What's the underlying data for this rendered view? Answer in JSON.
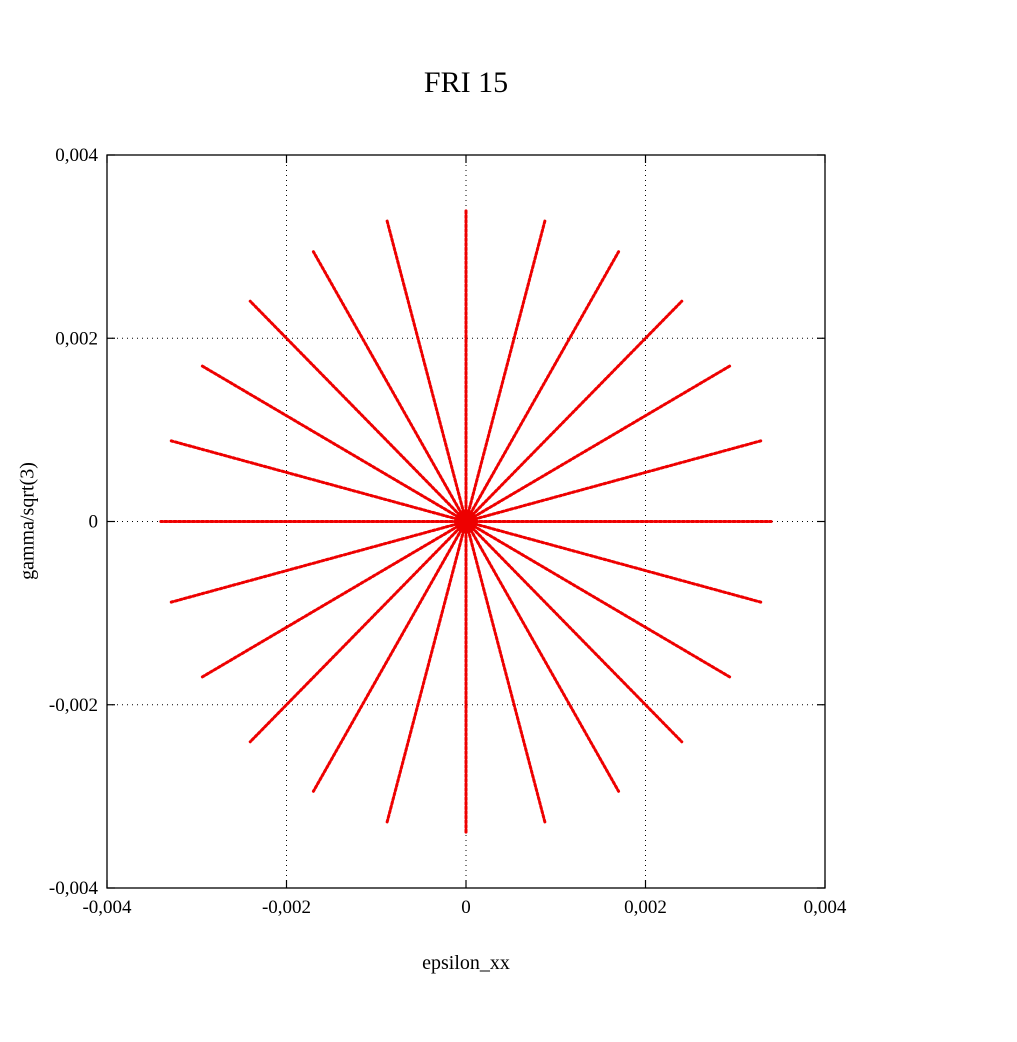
{
  "chart_data": {
    "type": "scatter",
    "title": "FRI 15",
    "xlabel": "epsilon_xx",
    "ylabel": "gamma/sqrt(3)",
    "xlim": [
      -0.004,
      0.004
    ],
    "ylim": [
      -0.004,
      0.004
    ],
    "x_ticks": [
      "-0,004",
      "-0,002",
      "0",
      "0,002",
      "0,004"
    ],
    "x_tick_values": [
      -0.004,
      -0.002,
      0,
      0.002,
      0.004
    ],
    "y_ticks": [
      "-0,004",
      "-0,002",
      "0",
      "0,002",
      "0,004"
    ],
    "y_tick_values": [
      -0.004,
      -0.002,
      0,
      0.002,
      0.004
    ],
    "grid": "dotted grid lines at -0.002, 0, 0.002 on both axes; solid black plot border; inward tick marks on all four sides",
    "legend": "none",
    "series_color": "#ee0000",
    "series": [
      {
        "name": "radial strain paths",
        "description": "24 straight rays of dense red points radiating from the origin every 15 degrees, each reaching radius ~0.0034, with a dense red cluster at the origin",
        "rays": {
          "count": 24,
          "angle_step_deg": 15,
          "radius": 0.0034,
          "angles_deg": [
            0,
            15,
            30,
            45,
            60,
            75,
            90,
            105,
            120,
            135,
            150,
            165,
            180,
            195,
            210,
            225,
            240,
            255,
            270,
            285,
            300,
            315,
            330,
            345
          ],
          "origin": [
            0,
            0
          ]
        }
      }
    ]
  }
}
